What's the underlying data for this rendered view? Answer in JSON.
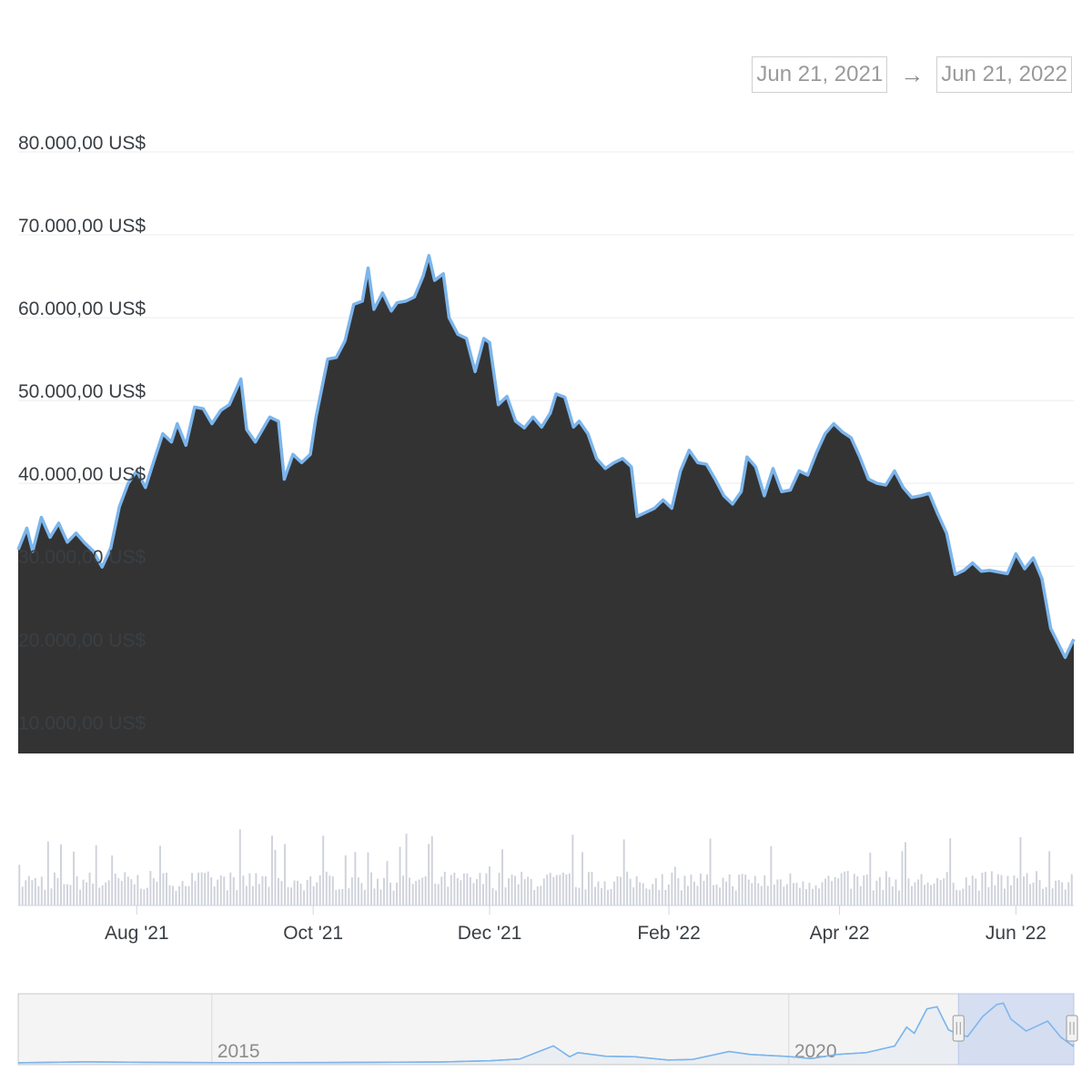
{
  "range_selector": {
    "start": "Jun 21, 2021",
    "arrow": "→",
    "end": "Jun 21, 2022"
  },
  "colors": {
    "line": "#7cb5ec",
    "area": "#333333",
    "volume": "#cfd2db",
    "navigator_mask": "#cfd8ee"
  },
  "chart_data": {
    "type": "area",
    "y_ticks": [
      "80.000,00 US$",
      "70.000,00 US$",
      "60.000,00 US$",
      "50.000,00 US$",
      "40.000,00 US$",
      "30.000,00 US$",
      "20.000,00 US$",
      "10.000,00 US$"
    ],
    "x_ticks": [
      "Aug '21",
      "Oct '21",
      "Dec '21",
      "Feb '22",
      "Apr '22",
      "Jun '22"
    ],
    "ylim": [
      10000,
      80000
    ],
    "price_series": [
      [
        "2021-06-21",
        32000
      ],
      [
        "2021-06-24",
        34600
      ],
      [
        "2021-06-26",
        31800
      ],
      [
        "2021-06-29",
        35900
      ],
      [
        "2021-07-02",
        33500
      ],
      [
        "2021-07-05",
        35200
      ],
      [
        "2021-07-08",
        32900
      ],
      [
        "2021-07-11",
        34000
      ],
      [
        "2021-07-14",
        32800
      ],
      [
        "2021-07-17",
        31800
      ],
      [
        "2021-07-20",
        29900
      ],
      [
        "2021-07-23",
        32200
      ],
      [
        "2021-07-26",
        37200
      ],
      [
        "2021-07-29",
        40000
      ],
      [
        "2021-08-01",
        41500
      ],
      [
        "2021-08-04",
        39500
      ],
      [
        "2021-08-07",
        42800
      ],
      [
        "2021-08-10",
        46000
      ],
      [
        "2021-08-13",
        45000
      ],
      [
        "2021-08-15",
        47200
      ],
      [
        "2021-08-18",
        44600
      ],
      [
        "2021-08-21",
        49200
      ],
      [
        "2021-08-24",
        49000
      ],
      [
        "2021-08-27",
        47200
      ],
      [
        "2021-08-30",
        48800
      ],
      [
        "2021-09-02",
        49500
      ],
      [
        "2021-09-06",
        52600
      ],
      [
        "2021-09-08",
        46500
      ],
      [
        "2021-09-11",
        45000
      ],
      [
        "2021-09-14",
        46800
      ],
      [
        "2021-09-16",
        48000
      ],
      [
        "2021-09-19",
        47500
      ],
      [
        "2021-09-21",
        40500
      ],
      [
        "2021-09-24",
        43500
      ],
      [
        "2021-09-27",
        42500
      ],
      [
        "2021-09-30",
        43500
      ],
      [
        "2021-10-02",
        48000
      ],
      [
        "2021-10-06",
        55000
      ],
      [
        "2021-10-09",
        55200
      ],
      [
        "2021-10-12",
        57200
      ],
      [
        "2021-10-15",
        61600
      ],
      [
        "2021-10-18",
        62000
      ],
      [
        "2021-10-20",
        66000
      ],
      [
        "2021-10-22",
        61000
      ],
      [
        "2021-10-25",
        63000
      ],
      [
        "2021-10-28",
        60800
      ],
      [
        "2021-10-30",
        61800
      ],
      [
        "2021-11-02",
        62000
      ],
      [
        "2021-11-05",
        62500
      ],
      [
        "2021-11-08",
        65000
      ],
      [
        "2021-11-10",
        67500
      ],
      [
        "2021-11-12",
        64500
      ],
      [
        "2021-11-15",
        65300
      ],
      [
        "2021-11-17",
        60000
      ],
      [
        "2021-11-20",
        58000
      ],
      [
        "2021-11-23",
        57500
      ],
      [
        "2021-11-26",
        53500
      ],
      [
        "2021-11-29",
        57500
      ],
      [
        "2021-12-01",
        57000
      ],
      [
        "2021-12-04",
        49500
      ],
      [
        "2021-12-07",
        50500
      ],
      [
        "2021-12-10",
        47500
      ],
      [
        "2021-12-13",
        46700
      ],
      [
        "2021-12-16",
        48000
      ],
      [
        "2021-12-19",
        46800
      ],
      [
        "2021-12-22",
        48500
      ],
      [
        "2021-12-24",
        50800
      ],
      [
        "2021-12-27",
        50400
      ],
      [
        "2021-12-30",
        46800
      ],
      [
        "2022-01-01",
        47500
      ],
      [
        "2022-01-04",
        46000
      ],
      [
        "2022-01-07",
        43000
      ],
      [
        "2022-01-10",
        41800
      ],
      [
        "2022-01-13",
        42500
      ],
      [
        "2022-01-16",
        43000
      ],
      [
        "2022-01-19",
        42000
      ],
      [
        "2022-01-21",
        36000
      ],
      [
        "2022-01-24",
        36500
      ],
      [
        "2022-01-27",
        37000
      ],
      [
        "2022-01-30",
        38000
      ],
      [
        "2022-02-02",
        37000
      ],
      [
        "2022-02-05",
        41500
      ],
      [
        "2022-02-08",
        44000
      ],
      [
        "2022-02-11",
        42500
      ],
      [
        "2022-02-14",
        42300
      ],
      [
        "2022-02-17",
        40500
      ],
      [
        "2022-02-20",
        38500
      ],
      [
        "2022-02-23",
        37500
      ],
      [
        "2022-02-26",
        39000
      ],
      [
        "2022-02-28",
        43200
      ],
      [
        "2022-03-03",
        42000
      ],
      [
        "2022-03-06",
        38500
      ],
      [
        "2022-03-09",
        41800
      ],
      [
        "2022-03-12",
        39000
      ],
      [
        "2022-03-15",
        39200
      ],
      [
        "2022-03-18",
        41500
      ],
      [
        "2022-03-21",
        41000
      ],
      [
        "2022-03-24",
        43700
      ],
      [
        "2022-03-27",
        46000
      ],
      [
        "2022-03-30",
        47200
      ],
      [
        "2022-04-02",
        46200
      ],
      [
        "2022-04-05",
        45500
      ],
      [
        "2022-04-08",
        43200
      ],
      [
        "2022-04-11",
        40500
      ],
      [
        "2022-04-14",
        40000
      ],
      [
        "2022-04-17",
        39800
      ],
      [
        "2022-04-20",
        41500
      ],
      [
        "2022-04-23",
        39500
      ],
      [
        "2022-04-26",
        38300
      ],
      [
        "2022-04-29",
        38500
      ],
      [
        "2022-05-02",
        38800
      ],
      [
        "2022-05-05",
        36300
      ],
      [
        "2022-05-08",
        34000
      ],
      [
        "2022-05-11",
        29000
      ],
      [
        "2022-05-14",
        29500
      ],
      [
        "2022-05-17",
        30400
      ],
      [
        "2022-05-20",
        29400
      ],
      [
        "2022-05-23",
        29500
      ],
      [
        "2022-05-26",
        29300
      ],
      [
        "2022-05-29",
        29100
      ],
      [
        "2022-06-01",
        31500
      ],
      [
        "2022-06-04",
        29700
      ],
      [
        "2022-06-07",
        31000
      ],
      [
        "2022-06-10",
        28500
      ],
      [
        "2022-06-13",
        22500
      ],
      [
        "2022-06-16",
        20400
      ],
      [
        "2022-06-18",
        19000
      ],
      [
        "2022-06-21",
        21200
      ]
    ],
    "navigator": {
      "x_labels": [
        "2015",
        "2020"
      ],
      "overview_series": [
        [
          "2013-04-28",
          135
        ],
        [
          "2013-11-30",
          1100
        ],
        [
          "2014-06-01",
          650
        ],
        [
          "2015-01-15",
          210
        ],
        [
          "2015-06-01",
          230
        ],
        [
          "2016-01-01",
          430
        ],
        [
          "2016-06-01",
          650
        ],
        [
          "2017-01-01",
          1000
        ],
        [
          "2017-06-01",
          2500
        ],
        [
          "2017-09-01",
          4300
        ],
        [
          "2017-12-17",
          19300
        ],
        [
          "2018-02-06",
          6900
        ],
        [
          "2018-03-05",
          11500
        ],
        [
          "2018-06-01",
          7500
        ],
        [
          "2018-09-01",
          7000
        ],
        [
          "2018-12-15",
          3200
        ],
        [
          "2019-03-01",
          3800
        ],
        [
          "2019-06-26",
          12900
        ],
        [
          "2019-09-01",
          9600
        ],
        [
          "2019-12-31",
          7200
        ],
        [
          "2020-03-12",
          4900
        ],
        [
          "2020-06-01",
          9500
        ],
        [
          "2020-09-01",
          11500
        ],
        [
          "2020-12-01",
          19000
        ],
        [
          "2021-01-08",
          40500
        ],
        [
          "2021-02-01",
          33500
        ],
        [
          "2021-03-13",
          61000
        ],
        [
          "2021-04-14",
          63500
        ],
        [
          "2021-05-20",
          37500
        ],
        [
          "2021-06-21",
          32000
        ],
        [
          "2021-07-20",
          29900
        ],
        [
          "2021-09-06",
          52600
        ],
        [
          "2021-10-20",
          66000
        ],
        [
          "2021-11-10",
          67500
        ],
        [
          "2021-12-04",
          49500
        ],
        [
          "2022-01-21",
          36000
        ],
        [
          "2022-03-30",
          47200
        ],
        [
          "2022-05-11",
          29000
        ],
        [
          "2022-06-18",
          19000
        ],
        [
          "2022-06-21",
          21200
        ]
      ]
    }
  }
}
